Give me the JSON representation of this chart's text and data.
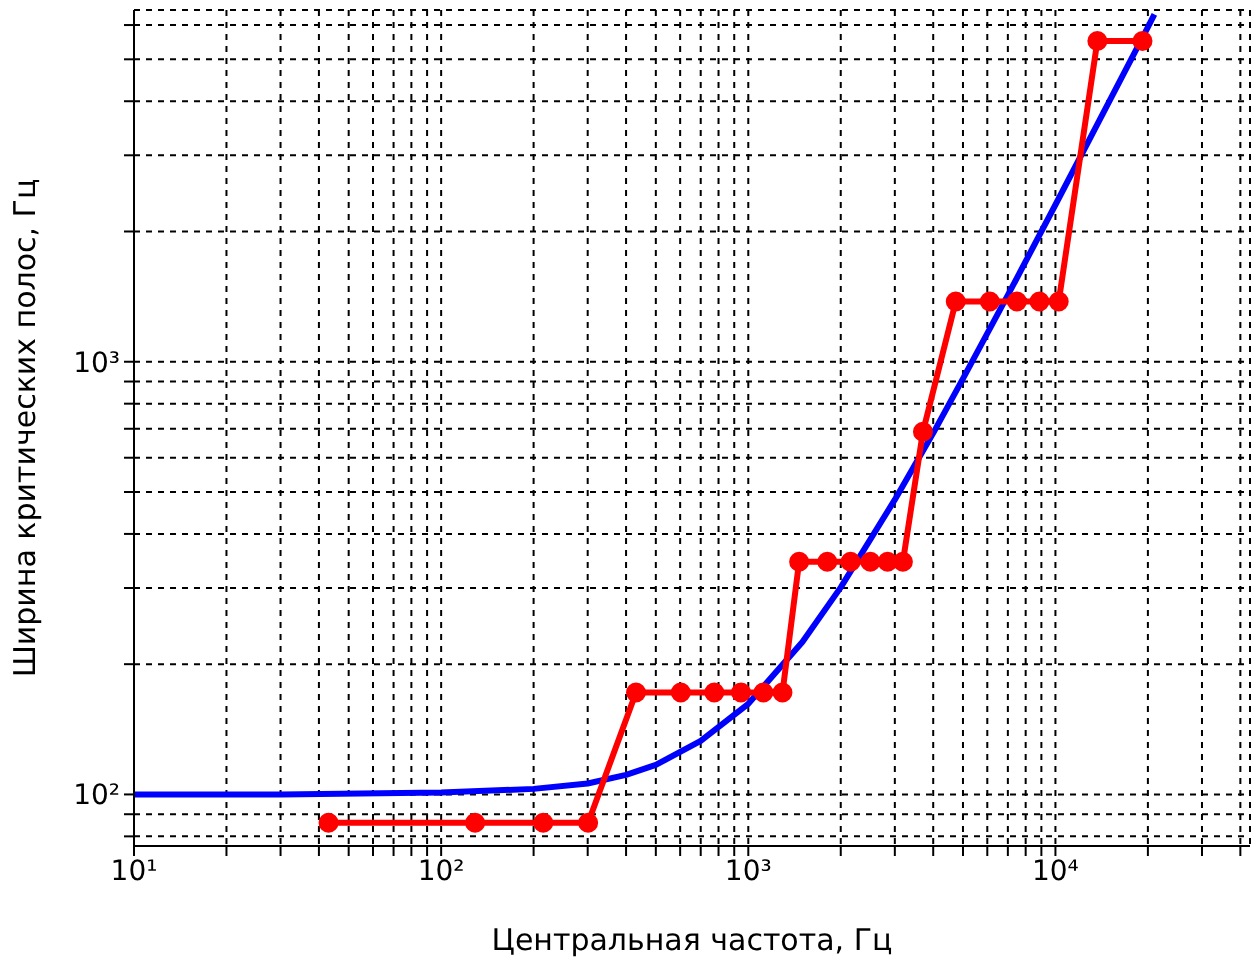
{
  "chart_data": {
    "type": "line",
    "xlabel": "Центральная частота, Гц",
    "ylabel": "Ширина критических полос, Гц",
    "log": "xy",
    "grid": true,
    "xlim": [
      10,
      43000
    ],
    "ylim": [
      76,
      6500
    ],
    "xticks": [
      {
        "value": 10,
        "label": "10¹"
      },
      {
        "value": 20,
        "label": null
      },
      {
        "value": 30,
        "label": null
      },
      {
        "value": 40,
        "label": null
      },
      {
        "value": 50,
        "label": null
      },
      {
        "value": 60,
        "label": null
      },
      {
        "value": 70,
        "label": null
      },
      {
        "value": 80,
        "label": null
      },
      {
        "value": 90,
        "label": null
      },
      {
        "value": 100,
        "label": "10²"
      },
      {
        "value": 200,
        "label": null
      },
      {
        "value": 300,
        "label": null
      },
      {
        "value": 400,
        "label": null
      },
      {
        "value": 500,
        "label": null
      },
      {
        "value": 600,
        "label": null
      },
      {
        "value": 700,
        "label": null
      },
      {
        "value": 800,
        "label": null
      },
      {
        "value": 900,
        "label": null
      },
      {
        "value": 1000,
        "label": "10³"
      },
      {
        "value": 2000,
        "label": null
      },
      {
        "value": 3000,
        "label": null
      },
      {
        "value": 4000,
        "label": null
      },
      {
        "value": 5000,
        "label": null
      },
      {
        "value": 6000,
        "label": null
      },
      {
        "value": 7000,
        "label": null
      },
      {
        "value": 8000,
        "label": null
      },
      {
        "value": 9000,
        "label": null
      },
      {
        "value": 10000,
        "label": "10⁴"
      },
      {
        "value": 20000,
        "label": null
      },
      {
        "value": 30000,
        "label": null
      },
      {
        "value": 40000,
        "label": null
      }
    ],
    "yticks": [
      {
        "value": 80,
        "label": null
      },
      {
        "value": 90,
        "label": null
      },
      {
        "value": 100,
        "label": "10²"
      },
      {
        "value": 200,
        "label": null
      },
      {
        "value": 300,
        "label": null
      },
      {
        "value": 400,
        "label": null
      },
      {
        "value": 500,
        "label": null
      },
      {
        "value": 600,
        "label": null
      },
      {
        "value": 700,
        "label": null
      },
      {
        "value": 800,
        "label": null
      },
      {
        "value": 900,
        "label": null
      },
      {
        "value": 1000,
        "label": "10³"
      },
      {
        "value": 2000,
        "label": null
      },
      {
        "value": 3000,
        "label": null
      },
      {
        "value": 4000,
        "label": null
      },
      {
        "value": 5000,
        "label": null
      },
      {
        "value": 6000,
        "label": null
      }
    ],
    "series": [
      {
        "color": "#0000ff",
        "marker": "none",
        "x": [
          10,
          30,
          100,
          200,
          300,
          400,
          500,
          700,
          1000,
          1500,
          2000,
          3000,
          4000,
          5000,
          7000,
          10000,
          15000,
          20000,
          21000
        ],
        "values": [
          100,
          100,
          101,
          103,
          106,
          111,
          117,
          133,
          162,
          225,
          301,
          480,
          684,
          914,
          1425,
          2306,
          4007,
          5935,
          6348
        ]
      },
      {
        "color": "#ff0000",
        "marker": "circle",
        "x": [
          43,
          129,
          215,
          301,
          431,
          603,
          775,
          947,
          1120,
          1292,
          1464,
          1808,
          2153,
          2498,
          2842,
          3187,
          3704,
          4737,
          6115,
          7493,
          8871,
          10249,
          13694,
          19206
        ],
        "values": [
          86,
          86,
          86,
          86,
          172,
          172,
          172,
          172,
          172,
          172,
          345,
          345,
          345,
          345,
          345,
          345,
          689,
          1378,
          1378,
          1378,
          1378,
          1378,
          5512,
          5512
        ]
      }
    ]
  }
}
